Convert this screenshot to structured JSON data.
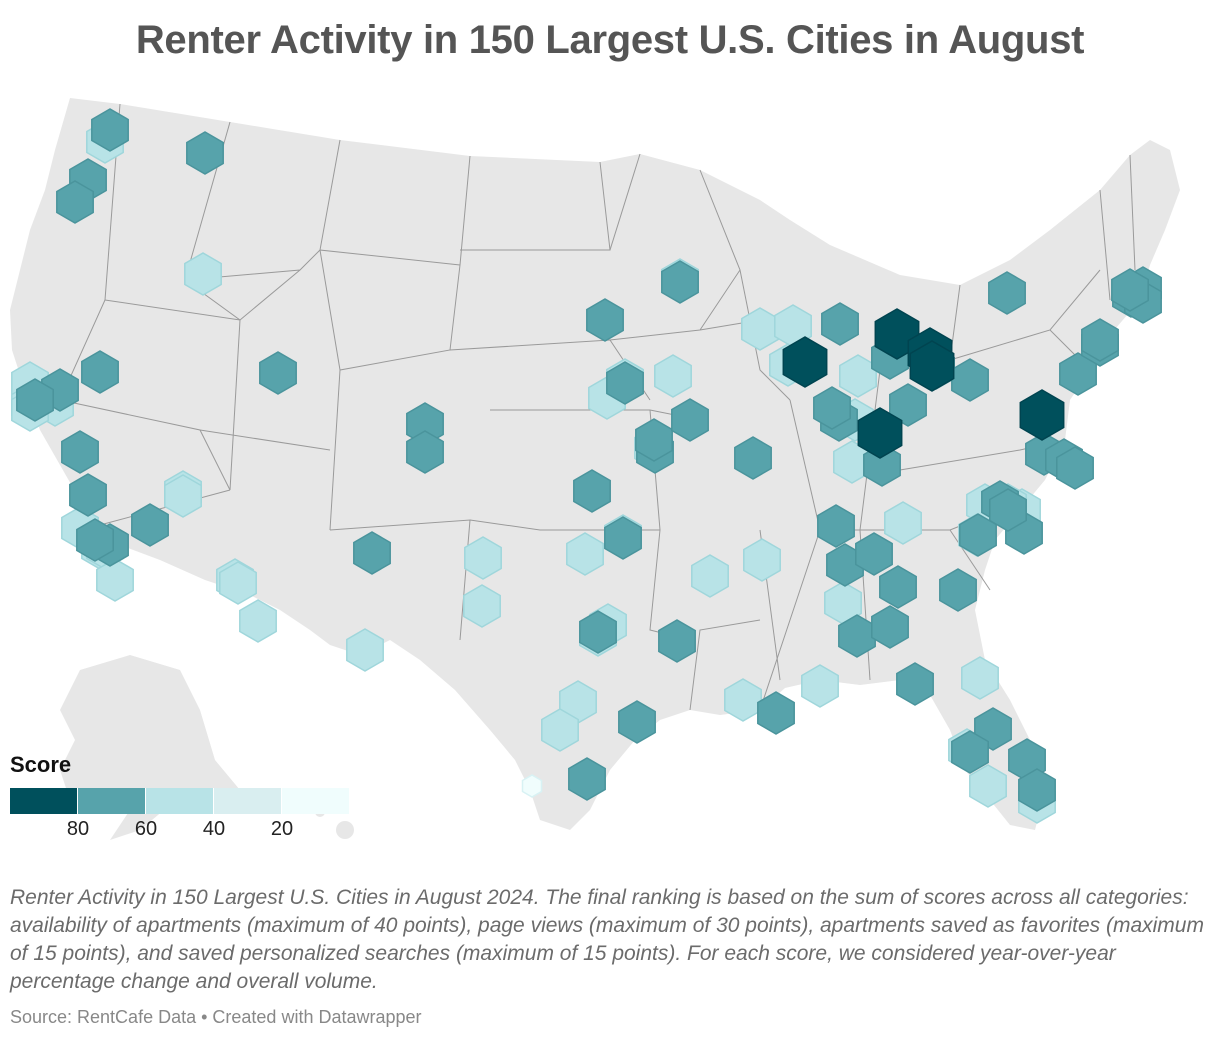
{
  "title": "Renter Activity in 150 Largest U.S. Cities in August",
  "legend": {
    "title": "Score",
    "ticks": [
      "80",
      "60",
      "40",
      "20"
    ],
    "colors": [
      "#00505c",
      "#57a3ab",
      "#b8e3e7",
      "#d9eef0",
      "#f0fdfd"
    ]
  },
  "caption": "Renter Activity in 150 Largest U.S. Cities in August 2024. The final ranking is based on the sum of scores across all categories: availability of apartments (maximum of 40 points), page views (maximum of 30 points), apartments saved as favorites (maximum of 15 points), and saved personalized searches (maximum of 15 points). For each score, we considered year-over-year percentage change and overall volume.",
  "source": "Source: RentCafe Data • Created with Datawrapper",
  "map_colors": {
    "land": "#e7e7e7",
    "border": "#9a9a9a",
    "background": "#ffffff"
  },
  "chart_data": {
    "type": "hex-map",
    "value_field": "score_bucket",
    "bucket_legend": [
      "80+",
      "60-80",
      "40-60",
      "20-40",
      "0-20"
    ],
    "markers": [
      {
        "bucket": "60-80"
      },
      {
        "bucket": "40-60"
      },
      {
        "bucket": "60-80"
      },
      {
        "bucket": "60-80"
      },
      {
        "bucket": "60-80"
      },
      {
        "bucket": "40-60"
      },
      {
        "bucket": "60-80"
      },
      {
        "bucket": "60-80"
      },
      {
        "bucket": "40-60"
      },
      {
        "bucket": "60-80"
      },
      {
        "bucket": "60-80"
      },
      {
        "bucket": "40-60"
      },
      {
        "bucket": "60-80"
      },
      {
        "bucket": "60-80"
      },
      {
        "bucket": "40-60"
      },
      {
        "bucket": "40-60"
      },
      {
        "bucket": "40-60"
      },
      {
        "bucket": "60-80"
      },
      {
        "bucket": "60-80"
      },
      {
        "bucket": "60-80"
      },
      {
        "bucket": "60-80"
      },
      {
        "bucket": "40-60"
      },
      {
        "bucket": "40-60"
      },
      {
        "bucket": "40-60"
      },
      {
        "bucket": "60-80"
      },
      {
        "bucket": "60-80"
      },
      {
        "bucket": "60-80"
      },
      {
        "bucket": "40-60"
      },
      {
        "bucket": "40-60"
      },
      {
        "bucket": "40-60"
      },
      {
        "bucket": "40-60"
      },
      {
        "bucket": "40-60"
      },
      {
        "bucket": "40-60"
      },
      {
        "bucket": "40-60"
      },
      {
        "bucket": "0-20"
      },
      {
        "bucket": "60-80"
      },
      {
        "bucket": "60-80"
      },
      {
        "bucket": "60-80"
      },
      {
        "bucket": "60-80"
      },
      {
        "bucket": "40-60"
      },
      {
        "bucket": "40-60"
      },
      {
        "bucket": "60-80"
      },
      {
        "bucket": "80+"
      },
      {
        "bucket": "60-80"
      },
      {
        "bucket": "40-60"
      },
      {
        "bucket": "40-60"
      },
      {
        "bucket": "40-60"
      },
      {
        "bucket": "80+"
      },
      {
        "bucket": "40-60"
      },
      {
        "bucket": "60-80"
      },
      {
        "bucket": "80+"
      },
      {
        "bucket": "40-60"
      },
      {
        "bucket": "80+"
      },
      {
        "bucket": "60-80"
      },
      {
        "bucket": "40-60"
      },
      {
        "bucket": "60-80"
      },
      {
        "bucket": "60-80"
      },
      {
        "bucket": "60-80"
      },
      {
        "bucket": "80+"
      },
      {
        "bucket": "60-80"
      },
      {
        "bucket": "60-80"
      },
      {
        "bucket": "60-80"
      },
      {
        "bucket": "60-80"
      },
      {
        "bucket": "60-80"
      },
      {
        "bucket": "60-80"
      },
      {
        "bucket": "60-80"
      },
      {
        "bucket": "60-80"
      },
      {
        "bucket": "60-80"
      },
      {
        "bucket": "80+"
      },
      {
        "bucket": "60-80"
      },
      {
        "bucket": "60-80"
      },
      {
        "bucket": "60-80"
      },
      {
        "bucket": "40-60"
      },
      {
        "bucket": "60-80"
      },
      {
        "bucket": "40-60"
      },
      {
        "bucket": "60-80"
      },
      {
        "bucket": "60-80"
      },
      {
        "bucket": "60-80"
      },
      {
        "bucket": "60-80"
      },
      {
        "bucket": "40-60"
      },
      {
        "bucket": "60-80"
      },
      {
        "bucket": "60-80"
      },
      {
        "bucket": "60-80"
      },
      {
        "bucket": "40-60"
      },
      {
        "bucket": "60-80"
      },
      {
        "bucket": "60-80"
      },
      {
        "bucket": "60-80"
      },
      {
        "bucket": "40-60"
      },
      {
        "bucket": "60-80"
      },
      {
        "bucket": "40-60"
      },
      {
        "bucket": "60-80"
      },
      {
        "bucket": "40-60"
      },
      {
        "bucket": "40-60"
      },
      {
        "bucket": "60-80"
      },
      {
        "bucket": "60-80"
      },
      {
        "bucket": "60-80"
      },
      {
        "bucket": "40-60"
      },
      {
        "bucket": "40-60"
      },
      {
        "bucket": "40-60"
      },
      {
        "bucket": "40-60"
      },
      {
        "bucket": "60-80"
      },
      {
        "bucket": "60-80"
      },
      {
        "bucket": "40-60"
      },
      {
        "bucket": "40-60"
      },
      {
        "bucket": "40-60"
      },
      {
        "bucket": "40-60"
      },
      {
        "bucket": "60-80"
      },
      {
        "bucket": "60-80"
      },
      {
        "bucket": "40-60"
      },
      {
        "bucket": "40-60"
      },
      {
        "bucket": "40-60"
      },
      {
        "bucket": "40-60"
      },
      {
        "bucket": "40-60"
      },
      {
        "bucket": "60-80"
      },
      {
        "bucket": "60-80"
      },
      {
        "bucket": "60-80"
      },
      {
        "bucket": "40-60"
      },
      {
        "bucket": "40-60"
      },
      {
        "bucket": "40-60"
      },
      {
        "bucket": "60-80"
      },
      {
        "bucket": "60-80"
      },
      {
        "bucket": "40-60"
      },
      {
        "bucket": "60-80"
      }
    ]
  }
}
